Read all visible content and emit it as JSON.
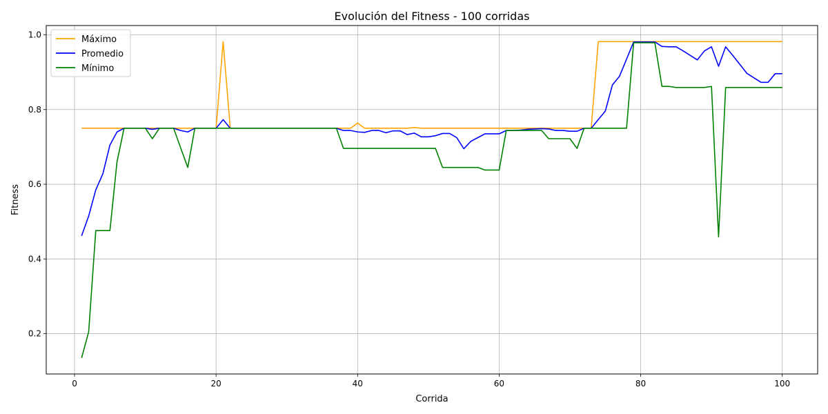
{
  "chart_data": {
    "type": "line",
    "title": "Evolución del Fitness - 100 corridas",
    "xlabel": "Corrida",
    "ylabel": "Fitness",
    "xlim": [
      -4,
      105
    ],
    "ylim": [
      0.092,
      1.025
    ],
    "xticks": [
      0,
      20,
      40,
      60,
      80,
      100
    ],
    "yticks": [
      0.2,
      0.4,
      0.6,
      0.8,
      1.0
    ],
    "xtick_labels": [
      "0",
      "20",
      "40",
      "60",
      "80",
      "100"
    ],
    "ytick_labels": [
      "0.2",
      "0.4",
      "0.6",
      "0.8",
      "1.0"
    ],
    "grid": true,
    "legend_position": "top-left",
    "series": [
      {
        "name": "Máximo",
        "color": "#ffa500",
        "points": [
          [
            1,
            0.75
          ],
          [
            20,
            0.75
          ],
          [
            21,
            0.982
          ],
          [
            22,
            0.75
          ],
          [
            38,
            0.75
          ],
          [
            39,
            0.75
          ],
          [
            40,
            0.764
          ],
          [
            41,
            0.75
          ],
          [
            47,
            0.75
          ],
          [
            48,
            0.752
          ],
          [
            49,
            0.75
          ],
          [
            73,
            0.75
          ],
          [
            74,
            0.982
          ],
          [
            100,
            0.982
          ]
        ]
      },
      {
        "name": "Promedio",
        "color": "#0000ff",
        "points": [
          [
            1,
            0.462
          ],
          [
            2,
            0.515
          ],
          [
            3,
            0.585
          ],
          [
            4,
            0.628
          ],
          [
            5,
            0.705
          ],
          [
            6,
            0.74
          ],
          [
            7,
            0.75
          ],
          [
            10,
            0.75
          ],
          [
            11,
            0.747
          ],
          [
            12,
            0.75
          ],
          [
            14,
            0.75
          ],
          [
            15,
            0.744
          ],
          [
            16,
            0.74
          ],
          [
            17,
            0.75
          ],
          [
            20,
            0.75
          ],
          [
            21,
            0.773
          ],
          [
            22,
            0.75
          ],
          [
            37,
            0.75
          ],
          [
            38,
            0.744
          ],
          [
            39,
            0.744
          ],
          [
            40,
            0.74
          ],
          [
            41,
            0.739
          ],
          [
            42,
            0.744
          ],
          [
            43,
            0.744
          ],
          [
            44,
            0.738
          ],
          [
            45,
            0.743
          ],
          [
            46,
            0.743
          ],
          [
            47,
            0.733
          ],
          [
            48,
            0.737
          ],
          [
            49,
            0.727
          ],
          [
            50,
            0.727
          ],
          [
            51,
            0.73
          ],
          [
            52,
            0.736
          ],
          [
            53,
            0.736
          ],
          [
            54,
            0.725
          ],
          [
            55,
            0.695
          ],
          [
            56,
            0.715
          ],
          [
            57,
            0.725
          ],
          [
            58,
            0.735
          ],
          [
            59,
            0.735
          ],
          [
            60,
            0.735
          ],
          [
            61,
            0.744
          ],
          [
            62,
            0.744
          ],
          [
            63,
            0.745
          ],
          [
            64,
            0.747
          ],
          [
            65,
            0.748
          ],
          [
            66,
            0.749
          ],
          [
            67,
            0.748
          ],
          [
            68,
            0.744
          ],
          [
            69,
            0.744
          ],
          [
            70,
            0.742
          ],
          [
            71,
            0.742
          ],
          [
            72,
            0.75
          ],
          [
            73,
            0.75
          ],
          [
            74,
            0.773
          ],
          [
            75,
            0.796
          ],
          [
            76,
            0.866
          ],
          [
            77,
            0.889
          ],
          [
            78,
            0.935
          ],
          [
            79,
            0.981
          ],
          [
            80,
            0.981
          ],
          [
            81,
            0.981
          ],
          [
            82,
            0.981
          ],
          [
            83,
            0.969
          ],
          [
            84,
            0.968
          ],
          [
            85,
            0.968
          ],
          [
            86,
            0.957
          ],
          [
            87,
            0.945
          ],
          [
            88,
            0.933
          ],
          [
            89,
            0.957
          ],
          [
            90,
            0.968
          ],
          [
            91,
            0.916
          ],
          [
            92,
            0.968
          ],
          [
            93,
            0.945
          ],
          [
            94,
            0.921
          ],
          [
            95,
            0.897
          ],
          [
            96,
            0.885
          ],
          [
            97,
            0.873
          ],
          [
            98,
            0.873
          ],
          [
            99,
            0.896
          ],
          [
            100,
            0.896
          ]
        ]
      },
      {
        "name": "Mínimo",
        "color": "#008000",
        "points": [
          [
            1,
            0.135
          ],
          [
            2,
            0.205
          ],
          [
            3,
            0.476
          ],
          [
            4,
            0.476
          ],
          [
            5,
            0.476
          ],
          [
            6,
            0.66
          ],
          [
            7,
            0.75
          ],
          [
            10,
            0.75
          ],
          [
            11,
            0.722
          ],
          [
            12,
            0.75
          ],
          [
            14,
            0.75
          ],
          [
            15,
            0.697
          ],
          [
            16,
            0.645
          ],
          [
            17,
            0.75
          ],
          [
            37,
            0.75
          ],
          [
            38,
            0.696
          ],
          [
            51,
            0.696
          ],
          [
            52,
            0.645
          ],
          [
            57,
            0.645
          ],
          [
            58,
            0.638
          ],
          [
            60,
            0.638
          ],
          [
            61,
            0.744
          ],
          [
            66,
            0.744
          ],
          [
            67,
            0.722
          ],
          [
            70,
            0.722
          ],
          [
            71,
            0.696
          ],
          [
            72,
            0.75
          ],
          [
            78,
            0.75
          ],
          [
            79,
            0.979
          ],
          [
            82,
            0.979
          ],
          [
            83,
            0.862
          ],
          [
            84,
            0.862
          ],
          [
            85,
            0.859
          ],
          [
            89,
            0.859
          ],
          [
            90,
            0.862
          ],
          [
            91,
            0.459
          ],
          [
            92,
            0.859
          ],
          [
            100,
            0.859
          ]
        ]
      }
    ]
  }
}
